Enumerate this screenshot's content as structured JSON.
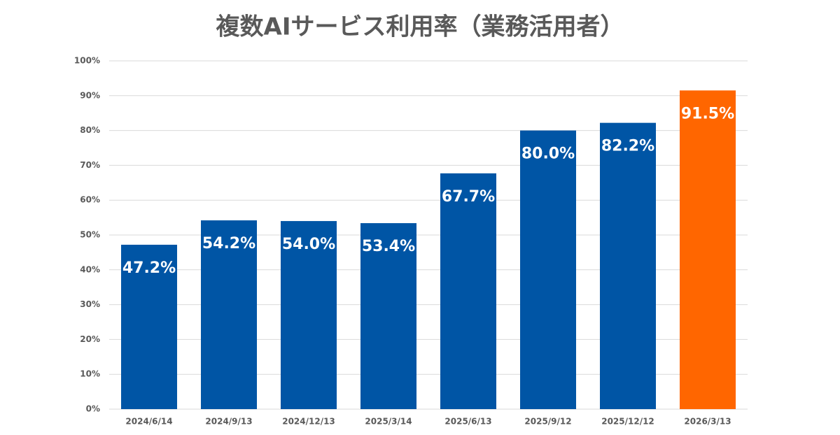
{
  "chart_data": {
    "type": "bar",
    "title": "複数AIサービス利用率（業務活用者）",
    "categories": [
      "2024/6/14",
      "2024/9/13",
      "2024/12/13",
      "2025/3/14",
      "2025/6/13",
      "2025/9/12",
      "2025/12/12",
      "2026/3/13"
    ],
    "values": [
      47.2,
      54.2,
      54.0,
      53.4,
      67.7,
      80.0,
      82.2,
      91.5
    ],
    "value_labels": [
      "47.2%",
      "54.2%",
      "54.0%",
      "53.4%",
      "67.7%",
      "80.0%",
      "82.2%",
      "91.5%"
    ],
    "colors": [
      "#0055a5",
      "#0055a5",
      "#0055a5",
      "#0055a5",
      "#0055a5",
      "#0055a5",
      "#0055a5",
      "#ff6600"
    ],
    "ylim": [
      0,
      100
    ],
    "yticks": [
      {
        "value": 0,
        "label": "0%"
      },
      {
        "value": 10,
        "label": "10%"
      },
      {
        "value": 20,
        "label": "20%"
      },
      {
        "value": 30,
        "label": "30%"
      },
      {
        "value": 40,
        "label": "40%"
      },
      {
        "value": 50,
        "label": "50%"
      },
      {
        "value": 60,
        "label": "60%"
      },
      {
        "value": 70,
        "label": "70%"
      },
      {
        "value": 80,
        "label": "80%"
      },
      {
        "value": 90,
        "label": "90%"
      },
      {
        "value": 100,
        "label": "100%"
      }
    ],
    "grid": true
  }
}
